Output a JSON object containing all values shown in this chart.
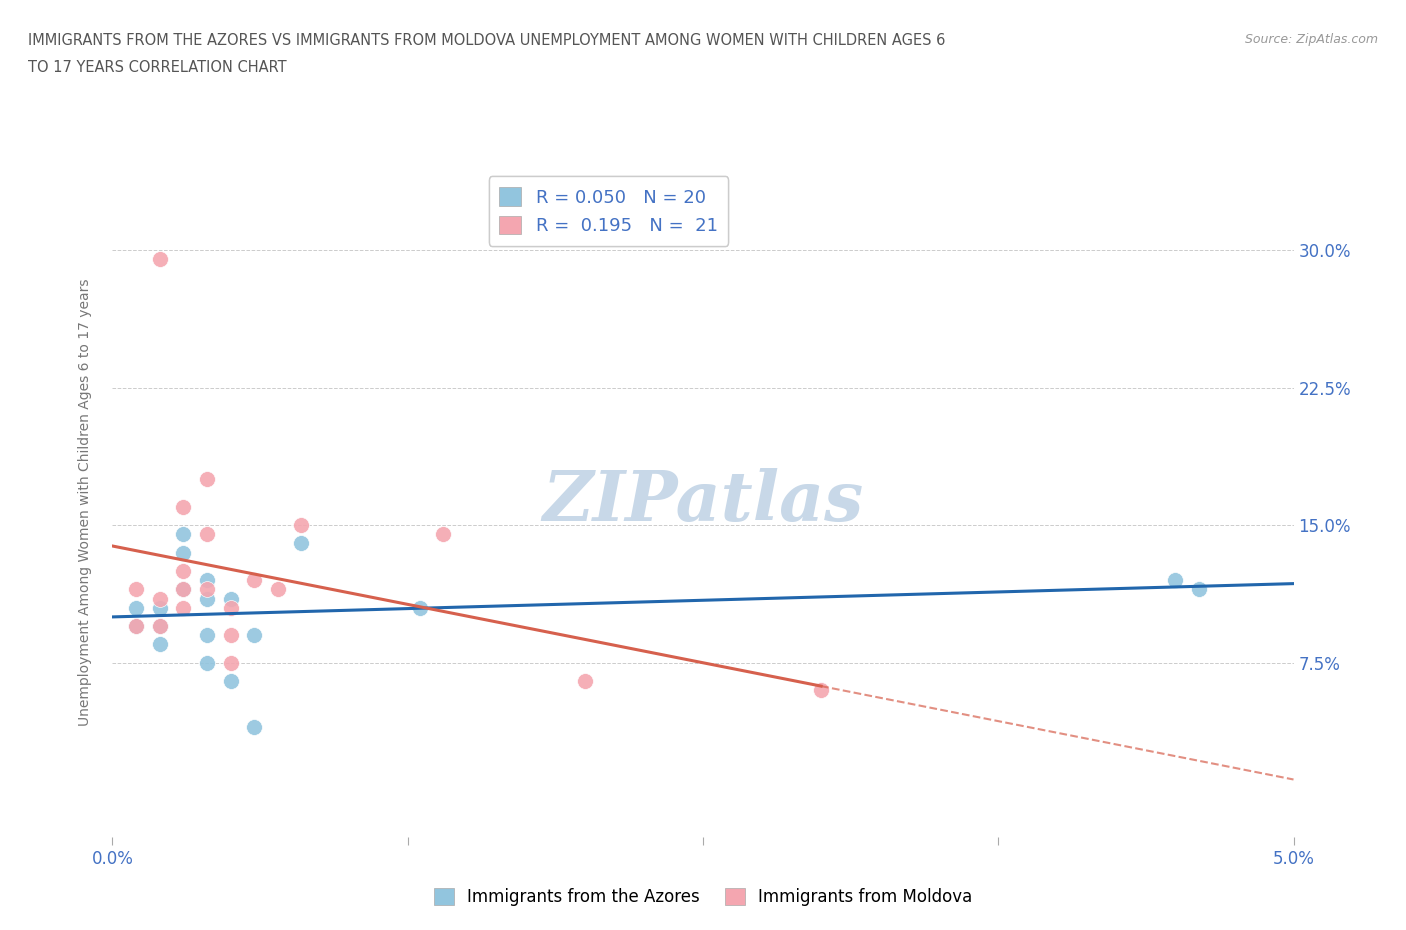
{
  "title_line1": "IMMIGRANTS FROM THE AZORES VS IMMIGRANTS FROM MOLDOVA UNEMPLOYMENT AMONG WOMEN WITH CHILDREN AGES 6",
  "title_line2": "TO 17 YEARS CORRELATION CHART",
  "source_text": "Source: ZipAtlas.com",
  "ylabel": "Unemployment Among Women with Children Ages 6 to 17 years",
  "xlim": [
    0.0,
    0.05
  ],
  "ylim": [
    -0.02,
    0.345
  ],
  "xticks": [
    0.0,
    0.0125,
    0.025,
    0.0375,
    0.05
  ],
  "xticklabels": [
    "0.0%",
    "",
    "",
    "",
    "5.0%"
  ],
  "yticks": [
    0.075,
    0.15,
    0.225,
    0.3
  ],
  "yticklabels": [
    "7.5%",
    "15.0%",
    "22.5%",
    "30.0%"
  ],
  "azores_R": 0.05,
  "azores_N": 20,
  "moldova_R": 0.195,
  "moldova_N": 21,
  "azores_color": "#92C5DE",
  "moldova_color": "#F4A6B0",
  "azores_line_color": "#2166AC",
  "moldova_line_color": "#D6604D",
  "watermark": "ZIPatlas",
  "watermark_color": "#C8D8E8",
  "background_color": "#FFFFFF",
  "grid_color": "#CCCCCC",
  "azores_x": [
    0.001,
    0.001,
    0.002,
    0.002,
    0.002,
    0.003,
    0.003,
    0.003,
    0.004,
    0.004,
    0.004,
    0.004,
    0.005,
    0.005,
    0.006,
    0.006,
    0.008,
    0.013,
    0.045,
    0.046
  ],
  "azores_y": [
    0.105,
    0.095,
    0.105,
    0.095,
    0.085,
    0.145,
    0.135,
    0.115,
    0.12,
    0.11,
    0.09,
    0.075,
    0.11,
    0.065,
    0.04,
    0.09,
    0.14,
    0.105,
    0.12,
    0.115
  ],
  "moldova_x": [
    0.002,
    0.001,
    0.001,
    0.002,
    0.002,
    0.003,
    0.003,
    0.003,
    0.003,
    0.004,
    0.004,
    0.004,
    0.005,
    0.005,
    0.005,
    0.006,
    0.007,
    0.008,
    0.014,
    0.02,
    0.03
  ],
  "moldova_y": [
    0.295,
    0.115,
    0.095,
    0.11,
    0.095,
    0.16,
    0.125,
    0.115,
    0.105,
    0.175,
    0.145,
    0.115,
    0.105,
    0.09,
    0.075,
    0.12,
    0.115,
    0.15,
    0.145,
    0.065,
    0.06
  ],
  "legend_label_azores": "Immigrants from the Azores",
  "legend_label_moldova": "Immigrants from Moldova"
}
